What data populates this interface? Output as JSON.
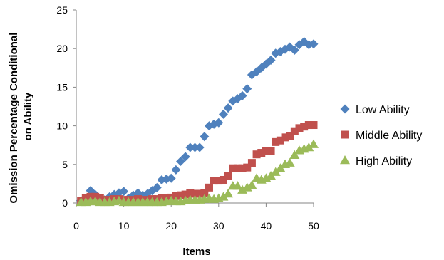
{
  "chart_data": {
    "type": "scatter",
    "xlabel": "Items",
    "ylabel_lines": [
      "Omission Percentage Conditional",
      "on Ability"
    ],
    "xlim": [
      0,
      50
    ],
    "ylim": [
      0,
      25
    ],
    "x_ticks": [
      0,
      10,
      20,
      30,
      40,
      50
    ],
    "y_ticks": [
      0,
      5,
      10,
      15,
      20,
      25
    ],
    "grid": false,
    "legend_position": "right",
    "x": [
      1,
      2,
      3,
      4,
      5,
      6,
      7,
      8,
      9,
      10,
      11,
      12,
      13,
      14,
      15,
      16,
      17,
      18,
      19,
      20,
      21,
      22,
      23,
      24,
      25,
      26,
      27,
      28,
      29,
      30,
      31,
      32,
      33,
      34,
      35,
      36,
      37,
      38,
      39,
      40,
      41,
      42,
      43,
      44,
      45,
      46,
      47,
      48,
      49,
      50
    ],
    "series": [
      {
        "name": "Low Ability",
        "marker": "diamond",
        "color": "#4F81BD",
        "values": [
          0.3,
          0.5,
          1.6,
          1.1,
          0.6,
          0.4,
          0.8,
          1.1,
          1.3,
          1.5,
          0.6,
          1.0,
          1.3,
          1.0,
          1.2,
          1.6,
          2.0,
          3.0,
          3.1,
          3.2,
          4.3,
          5.4,
          6.0,
          7.2,
          7.2,
          7.2,
          8.6,
          10.0,
          10.2,
          10.4,
          11.5,
          12.3,
          13.2,
          13.5,
          13.9,
          14.8,
          16.6,
          17.0,
          17.5,
          18.0,
          18.5,
          19.4,
          19.6,
          19.9,
          20.2,
          19.8,
          20.5,
          20.9,
          20.5,
          20.6
        ]
      },
      {
        "name": "Middle Ability",
        "marker": "square",
        "color": "#C0504D",
        "values": [
          0.3,
          0.6,
          0.8,
          0.8,
          0.6,
          0.4,
          0.4,
          0.5,
          0.5,
          0.4,
          0.4,
          0.4,
          0.5,
          0.4,
          0.4,
          0.5,
          0.5,
          0.6,
          0.6,
          0.7,
          0.9,
          1.0,
          1.1,
          1.3,
          1.2,
          1.2,
          1.3,
          2.0,
          2.9,
          2.9,
          3.0,
          3.5,
          4.5,
          4.5,
          4.5,
          4.6,
          5.2,
          6.3,
          6.5,
          6.7,
          6.7,
          7.9,
          8.1,
          8.5,
          8.7,
          9.3,
          9.7,
          9.9,
          10.1,
          10.1
        ]
      },
      {
        "name": "High Ability",
        "marker": "triangle",
        "color": "#9BBB59",
        "values": [
          0.1,
          0.1,
          0.2,
          0.2,
          0.1,
          0.1,
          0.1,
          0.2,
          0.3,
          0.1,
          0.1,
          0.1,
          0.1,
          0.1,
          0.1,
          0.1,
          0.1,
          0.1,
          0.2,
          0.3,
          0.2,
          0.2,
          0.3,
          0.4,
          0.4,
          0.4,
          0.5,
          0.6,
          0.5,
          0.6,
          0.8,
          1.2,
          2.2,
          2.2,
          1.7,
          2.0,
          2.3,
          3.2,
          3.0,
          3.2,
          3.5,
          4.0,
          4.5,
          5.0,
          5.2,
          6.2,
          6.8,
          7.0,
          7.2,
          7.6
        ]
      }
    ]
  }
}
